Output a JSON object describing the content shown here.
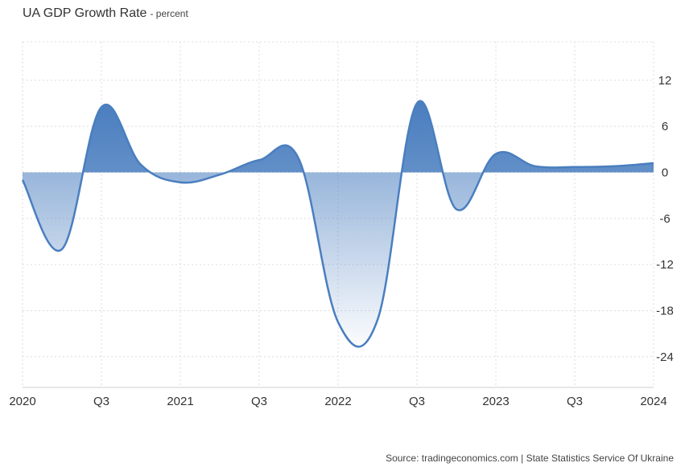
{
  "header": {
    "title": "UA GDP Growth Rate",
    "subtitle": "- percent"
  },
  "footer": {
    "source": "Source: tradingeconomics.com | State Statistics Service Of Ukraine"
  },
  "colors": {
    "line": "#4a7ebf",
    "fill_dark": "#4a7ebf",
    "fill_light": "#ffffff",
    "grid": "#dddddd",
    "axis_text": "#333333"
  },
  "chart_data": {
    "type": "area",
    "title": "UA GDP Growth Rate",
    "subtitle": "percent",
    "xlabel": "",
    "ylabel": "",
    "x_ticks": [
      "2020",
      "Q3",
      "2021",
      "Q3",
      "2022",
      "Q3",
      "2023",
      "Q3",
      "2024"
    ],
    "y_ticks": [
      12,
      6,
      0,
      -6,
      -12,
      -18,
      -24
    ],
    "ylim": [
      -28,
      17
    ],
    "xlim": [
      0,
      16
    ],
    "grid": true,
    "y_axis_side": "right",
    "series": [
      {
        "name": "",
        "x": [
          0,
          1,
          2,
          3,
          4,
          5,
          6,
          7,
          8,
          9,
          10,
          11,
          12,
          13,
          14,
          15,
          16
        ],
        "values": [
          -1.0,
          -10.0,
          8.5,
          1.0,
          -1.3,
          -0.3,
          1.6,
          1.8,
          -19.5,
          -19.2,
          9.0,
          -4.8,
          2.4,
          0.8,
          0.7,
          0.8,
          1.2
        ]
      }
    ]
  }
}
